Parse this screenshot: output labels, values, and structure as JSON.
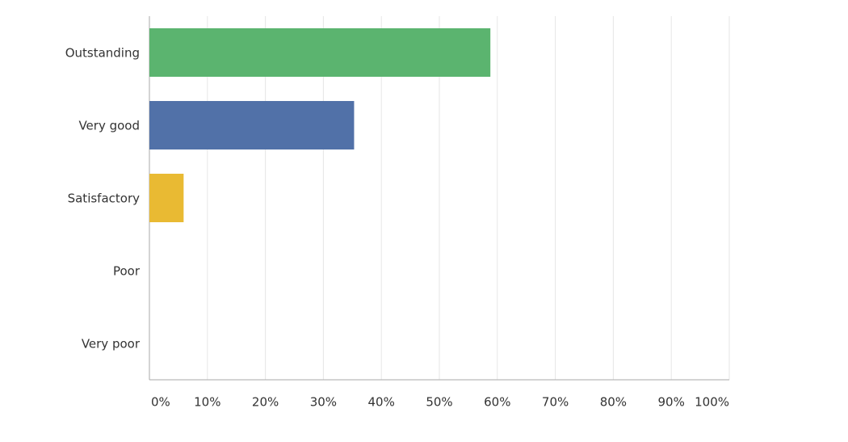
{
  "chart_data": {
    "type": "hbar",
    "categories": [
      "Outstanding",
      "Very good",
      "Satisfactory",
      "Poor",
      "Very poor"
    ],
    "values": [
      58.8,
      35.3,
      5.9,
      0,
      0
    ],
    "colors": [
      "#5bb46f",
      "#5171a8",
      "#e9ba33",
      "#d25f5f",
      "#8e6bb5"
    ],
    "xlim": [
      0,
      100
    ],
    "xticks": [
      {
        "value": 0,
        "label": "0%"
      },
      {
        "value": 10,
        "label": "10%"
      },
      {
        "value": 20,
        "label": "20%"
      },
      {
        "value": 30,
        "label": "30%"
      },
      {
        "value": 40,
        "label": "40%"
      },
      {
        "value": 50,
        "label": "50%"
      },
      {
        "value": 60,
        "label": "60%"
      },
      {
        "value": 70,
        "label": "70%"
      },
      {
        "value": 80,
        "label": "80%"
      },
      {
        "value": 90,
        "label": "90%"
      },
      {
        "value": 100,
        "label": "100%"
      }
    ],
    "grid": true
  }
}
